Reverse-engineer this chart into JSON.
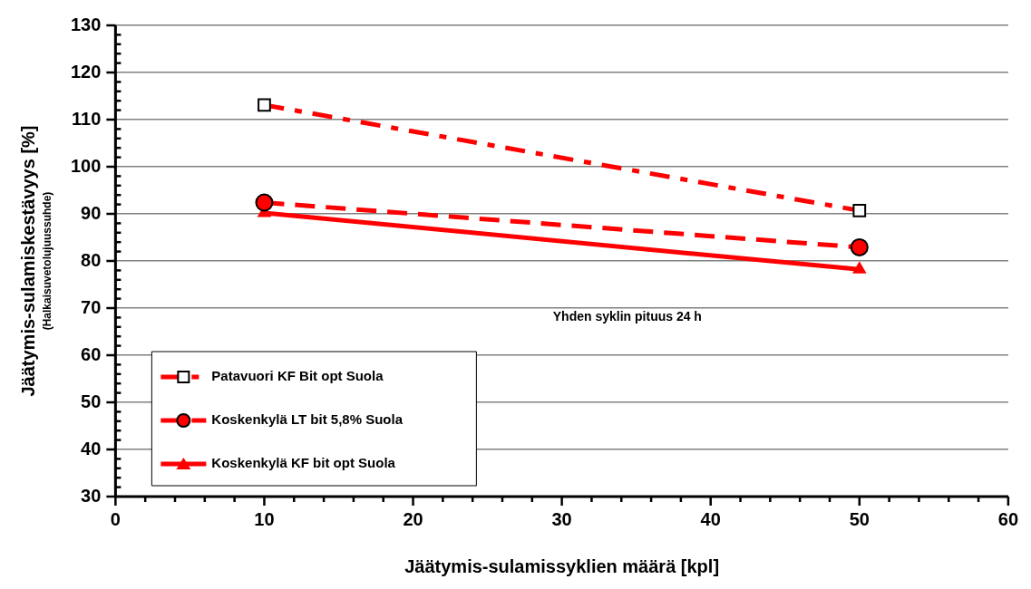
{
  "chart_data": {
    "type": "line",
    "xlabel": "Jäätymis-sulamissyklien määrä [kpl]",
    "ylabel": "Jäätymis-sulamiskestävyys [%]\n(Halkaisuvetolujuussuhde)",
    "annotations": [
      "Yhden syklin pituus 24 h"
    ],
    "x": [
      10,
      50
    ],
    "series": [
      {
        "name": "Patavuori KF Bit opt Suola",
        "color": "#ff0000",
        "values": [
          113.1,
          90.7
        ],
        "marker": "square",
        "line_style": "dashdot"
      },
      {
        "name": "Koskenkylä LT bit 5,8% Suola",
        "color": "#ff0000",
        "values": [
          92.4,
          82.9
        ],
        "marker": "circle",
        "line_style": "dashed"
      },
      {
        "name": "Koskenkylä KF bit opt Suola",
        "color": "#ff0000",
        "values": [
          90.2,
          78.2
        ],
        "marker": "triangle",
        "line_style": "solid"
      }
    ],
    "xlim": [
      0,
      60
    ],
    "xticks": [
      0,
      {
        "value": 2,
        "label": null
      },
      {
        "value": 4,
        "label": null
      },
      {
        "value": 6,
        "label": null
      },
      {
        "value": 8,
        "label": null
      },
      10,
      {
        "value": 12,
        "label": null
      },
      {
        "value": 14,
        "label": null
      },
      {
        "value": 16,
        "label": null
      },
      {
        "value": 18,
        "label": null
      },
      20,
      {
        "value": 22,
        "label": null
      },
      {
        "value": 24,
        "label": null
      },
      {
        "value": 26,
        "label": null
      },
      {
        "value": 28,
        "label": null
      },
      30,
      {
        "value": 32,
        "label": null
      },
      {
        "value": 34,
        "label": null
      },
      {
        "value": 36,
        "label": null
      },
      {
        "value": 38,
        "label": null
      },
      40,
      {
        "value": 42,
        "label": null
      },
      {
        "value": 44,
        "label": null
      },
      {
        "value": 46,
        "label": null
      },
      {
        "value": 48,
        "label": null
      },
      50,
      {
        "value": 52,
        "label": null
      },
      {
        "value": 54,
        "label": null
      },
      {
        "value": 56,
        "label": null
      },
      {
        "value": 58,
        "label": null
      },
      60
    ],
    "ylim": [
      30,
      130
    ],
    "yticks": [
      30,
      {
        "value": 32,
        "label": null
      },
      {
        "value": 34,
        "label": null
      },
      {
        "value": 36,
        "label": null
      },
      {
        "value": 38,
        "label": null
      },
      40,
      {
        "value": 42,
        "label": null
      },
      {
        "value": 44,
        "label": null
      },
      {
        "value": 46,
        "label": null
      },
      {
        "value": 48,
        "label": null
      },
      50,
      {
        "value": 52,
        "label": null
      },
      {
        "value": 54,
        "label": null
      },
      {
        "value": 56,
        "label": null
      },
      {
        "value": 58,
        "label": null
      },
      60,
      {
        "value": 62,
        "label": null
      },
      {
        "value": 64,
        "label": null
      },
      {
        "value": 66,
        "label": null
      },
      {
        "value": 68,
        "label": null
      },
      70,
      {
        "value": 72,
        "label": null
      },
      {
        "value": 74,
        "label": null
      },
      {
        "value": 76,
        "label": null
      },
      {
        "value": 78,
        "label": null
      },
      80,
      {
        "value": 82,
        "label": null
      },
      {
        "value": 84,
        "label": null
      },
      {
        "value": 86,
        "label": null
      },
      {
        "value": 88,
        "label": null
      },
      90,
      {
        "value": 92,
        "label": null
      },
      {
        "value": 94,
        "label": null
      },
      {
        "value": 96,
        "label": null
      },
      {
        "value": 98,
        "label": null
      },
      100,
      {
        "value": 102,
        "label": null
      },
      {
        "value": 104,
        "label": null
      },
      {
        "value": 106,
        "label": null
      },
      {
        "value": 108,
        "label": null
      },
      110,
      {
        "value": 112,
        "label": null
      },
      {
        "value": 114,
        "label": null
      },
      {
        "value": 116,
        "label": null
      },
      {
        "value": 118,
        "label": null
      },
      120,
      {
        "value": 122,
        "label": null
      },
      {
        "value": 124,
        "label": null
      },
      {
        "value": 126,
        "label": null
      },
      {
        "value": 128,
        "label": null
      },
      130
    ],
    "grid": "y",
    "legend": "bottom left"
  }
}
